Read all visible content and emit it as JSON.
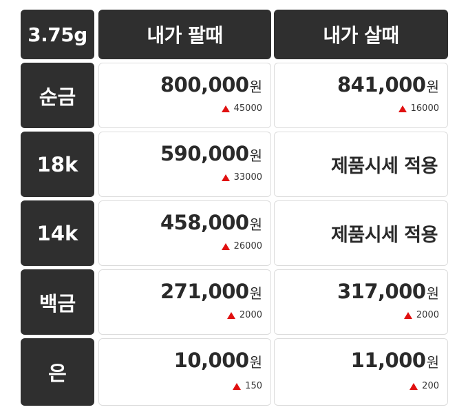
{
  "header": {
    "weight": "3.75g",
    "sell": "내가 팔때",
    "buy": "내가 살때"
  },
  "unit": "원",
  "rows": [
    {
      "label": "순금",
      "sell": {
        "price": "800,000",
        "change": "45000"
      },
      "buy": {
        "price": "841,000",
        "change": "16000"
      }
    },
    {
      "label": "18k",
      "sell": {
        "price": "590,000",
        "change": "33000"
      },
      "buy": {
        "note": "제품시세 적용"
      }
    },
    {
      "label": "14k",
      "sell": {
        "price": "458,000",
        "change": "26000"
      },
      "buy": {
        "note": "제품시세 적용"
      }
    },
    {
      "label": "백금",
      "sell": {
        "price": "271,000",
        "change": "2000"
      },
      "buy": {
        "price": "317,000",
        "change": "2000"
      }
    },
    {
      "label": "은",
      "sell": {
        "price": "10,000",
        "change": "150"
      },
      "buy": {
        "price": "11,000",
        "change": "200"
      }
    }
  ],
  "colors": {
    "dark_cell": "#2f2f2f",
    "up_arrow": "#e01010"
  }
}
